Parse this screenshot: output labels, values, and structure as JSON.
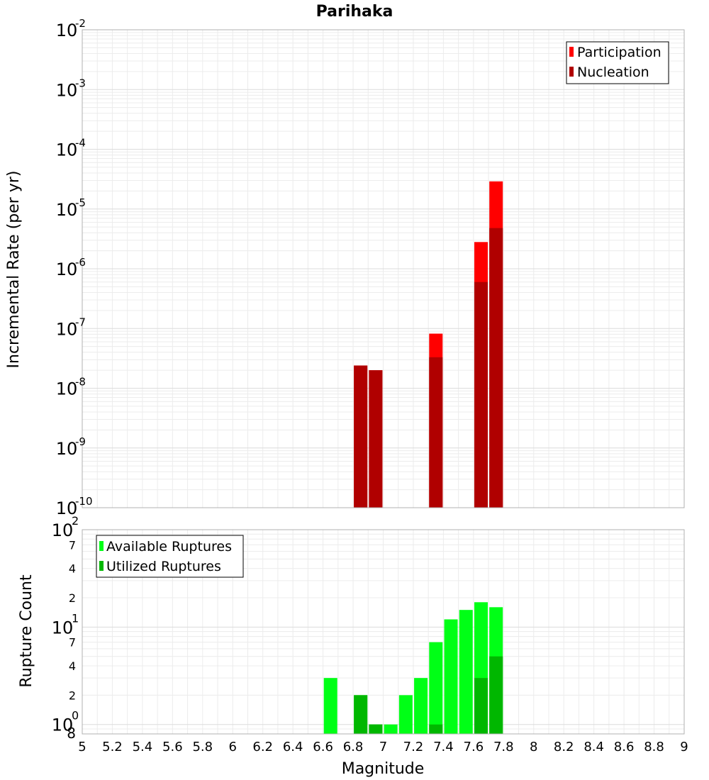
{
  "chart_data": [
    {
      "type": "bar",
      "title": "Parihaka",
      "ylabel": "Incremental Rate (per yr)",
      "yscale": "log",
      "ylim": [
        1e-10,
        0.01
      ],
      "xlim": [
        5,
        9
      ],
      "grid": true,
      "legend_position": "top-right",
      "y_ticks": [
        {
          "base": "10",
          "exp": "-10",
          "value": 1e-10
        },
        {
          "base": "10",
          "exp": "-9",
          "value": 1e-09
        },
        {
          "base": "10",
          "exp": "-8",
          "value": 1e-08
        },
        {
          "base": "10",
          "exp": "-7",
          "value": 1e-07
        },
        {
          "base": "10",
          "exp": "-6",
          "value": 1e-06
        },
        {
          "base": "10",
          "exp": "-5",
          "value": 1e-05
        },
        {
          "base": "10",
          "exp": "-4",
          "value": 0.0001
        },
        {
          "base": "10",
          "exp": "-3",
          "value": 0.001
        },
        {
          "base": "10",
          "exp": "-2",
          "value": 0.01
        }
      ],
      "series": [
        {
          "name": "Participation",
          "color": "#ff0000",
          "x": [
            6.85,
            6.95,
            7.35,
            7.65,
            7.75
          ],
          "values": [
            2.4e-08,
            2e-08,
            8.2e-08,
            2.8e-06,
            2.9e-05
          ]
        },
        {
          "name": "Nucleation",
          "color": "#b00000",
          "x": [
            6.85,
            6.95,
            7.35,
            7.65,
            7.75
          ],
          "values": [
            2.4e-08,
            2e-08,
            3.3e-08,
            6e-07,
            4.8e-06
          ]
        }
      ]
    },
    {
      "type": "bar",
      "xlabel": "Magnitude",
      "ylabel": "Rupture Count",
      "yscale": "log",
      "ylim": [
        0.8,
        100
      ],
      "xlim": [
        5,
        9
      ],
      "grid": true,
      "legend_position": "top-left",
      "x_ticks": [
        "5",
        "5.2",
        "5.4",
        "5.6",
        "5.8",
        "6",
        "6.2",
        "6.4",
        "6.6",
        "6.8",
        "7",
        "7.2",
        "7.4",
        "7.6",
        "7.8",
        "8",
        "8.2",
        "8.4",
        "8.6",
        "8.8",
        "9"
      ],
      "y_major_ticks": [
        {
          "base": "10",
          "exp": "0",
          "value": 1
        },
        {
          "base": "10",
          "exp": "1",
          "value": 10
        },
        {
          "base": "10",
          "exp": "2",
          "value": 100
        }
      ],
      "y_minor_ticks": [
        {
          "label": "8",
          "value": 0.8
        },
        {
          "label": "2",
          "value": 2
        },
        {
          "label": "4",
          "value": 4
        },
        {
          "label": "7",
          "value": 7
        },
        {
          "label": "2",
          "value": 20
        },
        {
          "label": "4",
          "value": 40
        },
        {
          "label": "7",
          "value": 70
        }
      ],
      "series": [
        {
          "name": "Available Ruptures",
          "color": "#00ff16",
          "x": [
            6.65,
            6.85,
            6.95,
            7.05,
            7.15,
            7.25,
            7.35,
            7.45,
            7.55,
            7.65,
            7.75
          ],
          "values": [
            3,
            2,
            1,
            1,
            2,
            3,
            7,
            12,
            15,
            18,
            16
          ]
        },
        {
          "name": "Utilized Ruptures",
          "color": "#00b700",
          "x": [
            6.85,
            6.95,
            7.35,
            7.65,
            7.75
          ],
          "values": [
            2,
            1,
            1,
            3,
            5
          ]
        }
      ]
    }
  ]
}
